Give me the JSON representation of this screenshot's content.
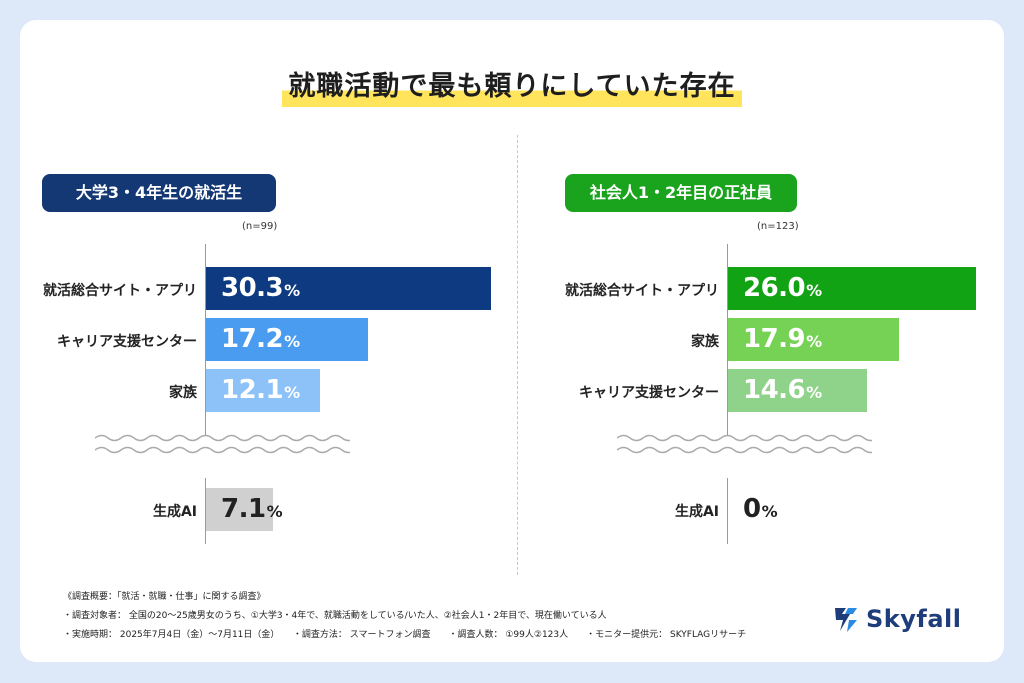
{
  "title": "就職活動で最も頼りにしていた存在",
  "chart_data": [
    {
      "type": "bar",
      "orientation": "horizontal",
      "group_label": "大学3・4年生の就活生",
      "n_label": "(n=99)",
      "xlim": [
        0,
        30.3
      ],
      "categories": [
        "就活総合サイト・アプリ",
        "キャリア支援センター",
        "家族"
      ],
      "values": [
        30.3,
        17.2,
        12.1
      ],
      "values_text": [
        "30.3",
        "17.2",
        "12.1"
      ],
      "bar_colors": [
        "#0d3a80",
        "#4a9cf0",
        "#8cc2f8"
      ],
      "value_colors": [
        "#ffffff",
        "#ffffff",
        "#ffffff"
      ],
      "extra": {
        "category": "生成AI",
        "value": 7.1,
        "value_text": "7.1",
        "color": "#d0d0d0",
        "value_color": "#222222"
      },
      "percent_sign": "%"
    },
    {
      "type": "bar",
      "orientation": "horizontal",
      "group_label": "社会人1・2年目の正社員",
      "n_label": "(n=123)",
      "xlim": [
        0,
        26.0
      ],
      "categories": [
        "就活総合サイト・アプリ",
        "家族",
        "キャリア支援センター"
      ],
      "values": [
        26.0,
        17.9,
        14.6
      ],
      "values_text": [
        "26.0",
        "17.9",
        "14.6"
      ],
      "bar_colors": [
        "#12a314",
        "#76d255",
        "#8fd28a"
      ],
      "value_colors": [
        "#ffffff",
        "#ffffff",
        "#ffffff"
      ],
      "extra": {
        "category": "生成AI",
        "value": 0,
        "value_text": "0",
        "color": "#d0d0d0",
        "value_color": "#222222"
      },
      "percent_sign": "%"
    }
  ],
  "notes": [
    "《調査概要：「就活・就職・仕事」に関する調査》",
    "・調査対象者： 全国の20〜25歳男女のうち、①大学3・4年で、就職活動をしている/いた人、②社会人1・2年目で、現在働いている人",
    "・実施時期： 2025年7月4日（金）〜7月11日（金）　　・調査方法： スマートフォン調査　　・調査人数： ①99人②123人　　・モニター提供元： SKYFLAGリサーチ"
  ],
  "logo": {
    "text": "Skyfall",
    "icon": "skyfall-logo-icon",
    "color": "#1e3d7a"
  }
}
